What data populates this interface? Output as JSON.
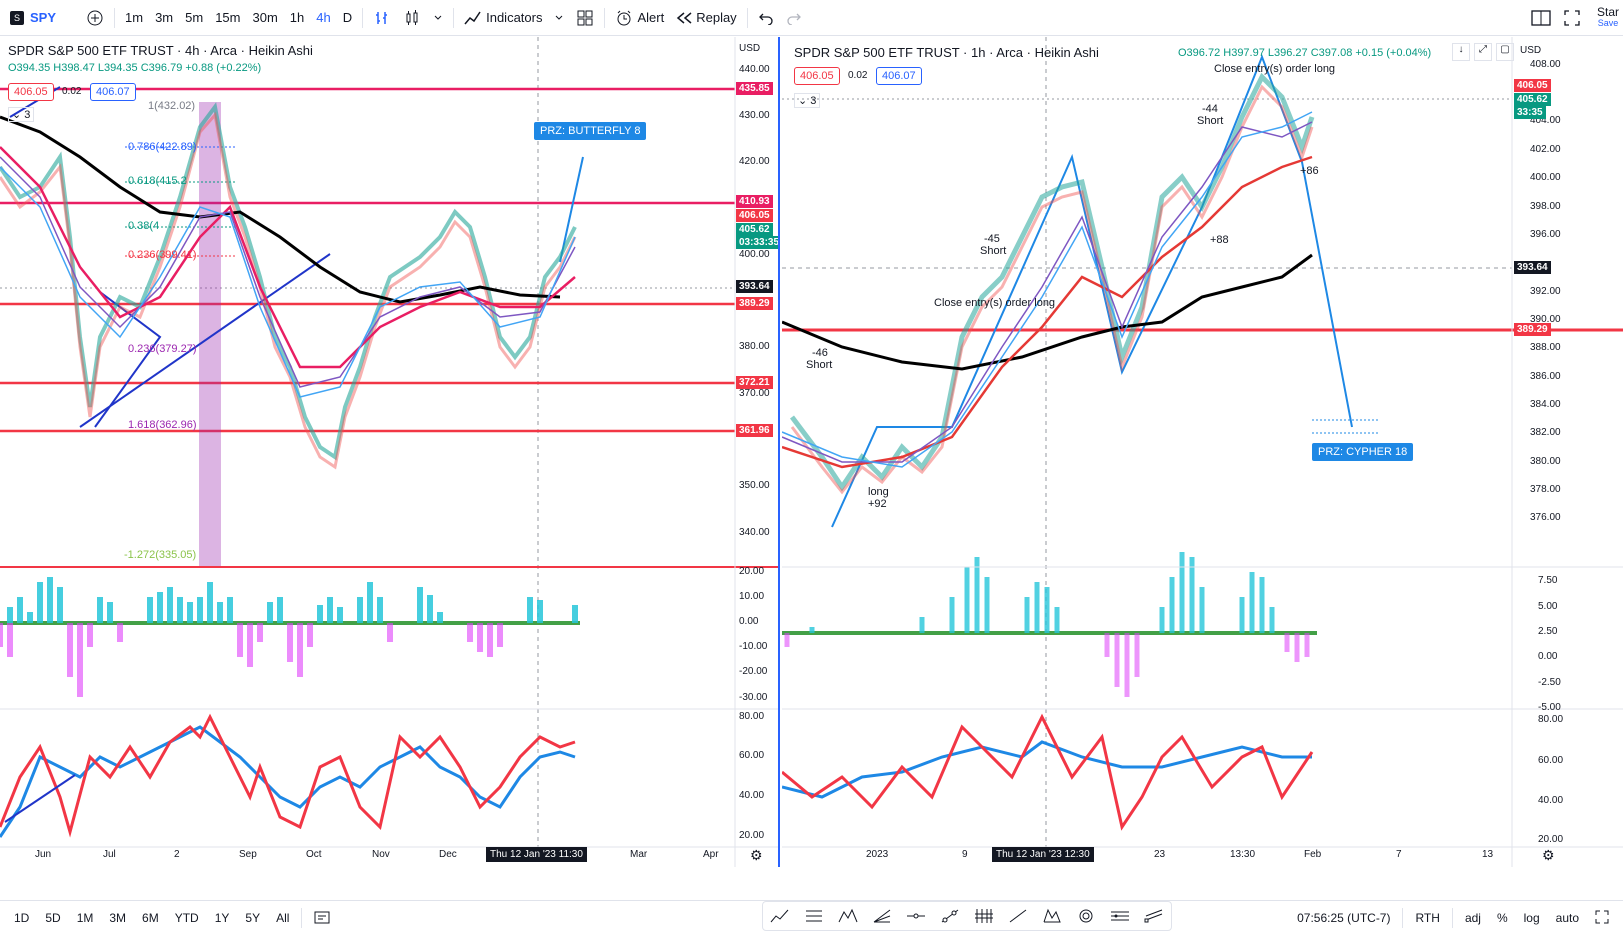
{
  "toolbar": {
    "symbol": "SPY",
    "intervals": [
      "1m",
      "3m",
      "5m",
      "15m",
      "30m",
      "1h",
      "4h",
      "D"
    ],
    "active_interval": "4h",
    "indicators_label": "Indicators",
    "alert_label": "Alert",
    "replay_label": "Replay",
    "right_label_1": "Star",
    "right_label_2": "Save"
  },
  "left_chart": {
    "title": "SPDR S&P 500 ETF TRUST · 4h · Arca · Heikin Ashi",
    "ohlc": "O394.35 H398.47 L394.35 C396.79 +0.88 (+0.22%)",
    "bid": "406.05",
    "spread": "0.02",
    "ask": "406.07",
    "currency": "USD",
    "layers_count": "3",
    "price_ticks": [
      "440.00",
      "430.00",
      "420.00",
      "400.00",
      "380.00",
      "370.00",
      "350.00",
      "340.00"
    ],
    "price_tags": [
      {
        "value": "435.85",
        "color": "#e91e63"
      },
      {
        "value": "410.93",
        "color": "#e91e63"
      },
      {
        "value": "406.05",
        "color": "#f23645"
      },
      {
        "value": "405.62",
        "color": "#089981"
      },
      {
        "value": "03:33:35",
        "color": "#089981"
      },
      {
        "value": "393.64",
        "color": "#131722"
      },
      {
        "value": "389.29",
        "color": "#f23645"
      },
      {
        "value": "372.21",
        "color": "#f23645"
      },
      {
        "value": "361.96",
        "color": "#f23645"
      }
    ],
    "osc1_ticks": [
      "20.00",
      "10.00",
      "0.00",
      "-10.00",
      "-20.00",
      "-30.00"
    ],
    "osc2_ticks": [
      "80.00",
      "60.00",
      "40.00",
      "20.00"
    ],
    "time_ticks": [
      "Jun",
      "Jul",
      "2",
      "Sep",
      "Oct",
      "Nov",
      "Dec",
      "Mar",
      "Apr"
    ],
    "crosshair_time": "Thu 12 Jan '23   11:30",
    "fib_labels": [
      "1(432.02)",
      "0.786(422.89)",
      "0.618(415.2",
      "0.38(4",
      "0.236(399.41)",
      "0.236(379.27)",
      "1.618(362.96)",
      "-1.272(335.05)"
    ],
    "prz_label": "PRZ: BUTTERFLY 8"
  },
  "right_chart": {
    "title": "SPDR S&P 500 ETF TRUST · 1h · Arca · Heikin Ashi",
    "ohlc": "O396.72 H397.97 L396.27 C397.08 +0.15 (+0.04%)",
    "bid": "406.05",
    "spread": "0.02",
    "ask": "406.07",
    "currency": "USD",
    "layers_count": "3",
    "price_ticks": [
      "408.00",
      "404.00",
      "402.00",
      "400.00",
      "398.00",
      "396.00",
      "392.00",
      "390.00",
      "388.00",
      "386.00",
      "384.00",
      "382.00",
      "380.00",
      "378.00",
      "376.00"
    ],
    "price_tags": [
      {
        "value": "406.05",
        "color": "#f23645"
      },
      {
        "value": "405.62",
        "color": "#089981"
      },
      {
        "value": "33:35",
        "color": "#089981"
      },
      {
        "value": "393.64",
        "color": "#131722"
      },
      {
        "value": "389.29",
        "color": "#f23645"
      }
    ],
    "osc1_ticks": [
      "7.50",
      "5.00",
      "2.50",
      "0.00",
      "-2.50",
      "-5.00"
    ],
    "osc2_ticks": [
      "80.00",
      "60.00",
      "40.00",
      "20.00"
    ],
    "time_ticks": [
      "2023",
      "9",
      "23",
      "13:30",
      "Feb",
      "7",
      "13"
    ],
    "crosshair_time": "Thu 12 Jan '23   12:30",
    "prz_label": "PRZ: CYPHER 18",
    "annotations": [
      "Close entry(s) order long",
      "-44",
      "Short",
      "-45",
      "Short",
      "-46",
      "Short",
      "long",
      "+92",
      "+86",
      "+88",
      "Close entry(s) order long"
    ]
  },
  "bottombar": {
    "ranges": [
      "1D",
      "5D",
      "1M",
      "3M",
      "6M",
      "YTD",
      "1Y",
      "5Y",
      "All"
    ],
    "clock": "07:56:25 (UTC-7)",
    "session": "RTH",
    "adj": "adj",
    "percent": "%",
    "log": "log",
    "auto": "auto"
  },
  "colors": {
    "accent": "#2962ff",
    "up": "#089981",
    "down": "#f23645",
    "pink_line": "#e91e63",
    "wave_purple": "#9c27b0",
    "wave_cyan": "#00bcd4"
  }
}
